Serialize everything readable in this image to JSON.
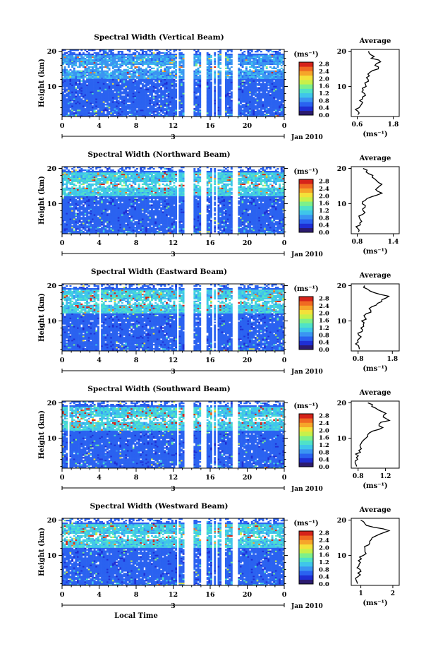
{
  "chart_data": [
    {
      "type": "heatmap",
      "title": "Spectral Width (Vertical Beam)",
      "ylabel": "Height (km)",
      "xticks": [
        "0",
        "4",
        "8",
        "12",
        "16",
        "20",
        "0"
      ],
      "yticks": [
        "10",
        "20"
      ],
      "date_tick": "3",
      "date_label": "Jan 2010",
      "ylim": [
        1.5,
        20.5
      ],
      "xlim": [
        0,
        24
      ],
      "missing_bands": [
        [
          12.4,
          12.6
        ],
        [
          13.2,
          14.2
        ],
        [
          15.1,
          15.6
        ],
        [
          16.1,
          16.4
        ],
        [
          16.7,
          16.9
        ],
        [
          17.2,
          17.5
        ],
        [
          18.4,
          19.0
        ]
      ],
      "colorbar": {
        "unit": "(ms⁻¹)",
        "ticks": [
          "2.8",
          "2.4",
          "2.0",
          "1.6",
          "1.2",
          "0.8",
          "0.4",
          "0.0"
        ]
      },
      "profile": {
        "title": "Average",
        "xlabel": "(ms⁻¹)",
        "xticks": [
          "0.6",
          "1.8"
        ],
        "xlim": [
          0.4,
          2.0
        ],
        "yticks": [
          "10",
          "20"
        ],
        "ylim": [
          1.5,
          20.5
        ],
        "height_km": [
          2,
          3,
          4,
          5,
          6,
          7,
          8,
          9,
          10,
          11,
          12,
          13,
          14,
          15,
          16,
          17,
          18,
          19,
          20
        ],
        "values": [
          0.62,
          0.6,
          0.66,
          0.75,
          0.7,
          0.78,
          0.82,
          0.8,
          0.9,
          0.84,
          0.95,
          1.0,
          1.05,
          1.3,
          1.2,
          1.35,
          1.1,
          1.05,
          1.0
        ]
      }
    },
    {
      "type": "heatmap",
      "title": "Spectral Width (Northward Beam)",
      "ylabel": "Height (km)",
      "xticks": [
        "0",
        "4",
        "8",
        "12",
        "16",
        "20",
        "0"
      ],
      "yticks": [
        "10",
        "20"
      ],
      "date_tick": "3",
      "date_label": "Jan 2010",
      "ylim": [
        1.5,
        20.5
      ],
      "xlim": [
        0,
        24
      ],
      "missing_bands": [
        [
          12.4,
          12.6
        ],
        [
          13.2,
          14.2
        ],
        [
          15.1,
          15.6
        ],
        [
          16.1,
          16.4
        ],
        [
          16.7,
          16.9
        ],
        [
          18.4,
          19.0
        ]
      ],
      "colorbar": {
        "unit": "(ms⁻¹)",
        "ticks": [
          "2.8",
          "2.4",
          "2.0",
          "1.6",
          "1.2",
          "0.8",
          "0.4",
          "0.0"
        ]
      },
      "profile": {
        "title": "Average",
        "xlabel": "(ms⁻¹)",
        "xticks": [
          "0.8",
          "1.4"
        ],
        "xlim": [
          0.7,
          1.5
        ],
        "yticks": [
          "10",
          "20"
        ],
        "ylim": [
          1.5,
          20.5
        ],
        "height_km": [
          2,
          3,
          4,
          5,
          6,
          7,
          8,
          9,
          10,
          11,
          12,
          13,
          14,
          15,
          16,
          17,
          18,
          19,
          20
        ],
        "values": [
          0.82,
          0.8,
          0.84,
          0.86,
          0.85,
          0.88,
          0.9,
          0.92,
          0.88,
          0.95,
          1.05,
          1.2,
          1.12,
          1.18,
          1.15,
          1.1,
          1.05,
          0.95,
          0.9
        ]
      }
    },
    {
      "type": "heatmap",
      "title": "Spectral Width (Eastward Beam)",
      "ylabel": "Height (km)",
      "xticks": [
        "0",
        "4",
        "8",
        "12",
        "16",
        "20",
        "0"
      ],
      "yticks": [
        "10",
        "20"
      ],
      "date_tick": "3",
      "date_label": "Jan 2010",
      "ylim": [
        1.5,
        20.5
      ],
      "xlim": [
        0,
        24
      ],
      "missing_bands": [
        [
          4.0,
          4.2
        ],
        [
          12.4,
          12.6
        ],
        [
          13.2,
          14.2
        ],
        [
          15.1,
          15.6
        ],
        [
          16.1,
          16.4
        ],
        [
          16.7,
          16.9
        ],
        [
          18.4,
          19.0
        ]
      ],
      "colorbar": {
        "unit": "(ms⁻¹)",
        "ticks": [
          "2.8",
          "2.4",
          "2.0",
          "1.6",
          "1.2",
          "0.8",
          "0.4",
          "0.0"
        ]
      },
      "profile": {
        "title": "Average",
        "xlabel": "(ms⁻¹)",
        "xticks": [
          "0.8",
          "1.8"
        ],
        "xlim": [
          0.6,
          2.0
        ],
        "yticks": [
          "10",
          "20"
        ],
        "ylim": [
          1.5,
          20.5
        ],
        "height_km": [
          2,
          3,
          4,
          5,
          6,
          7,
          8,
          9,
          10,
          11,
          12,
          13,
          14,
          15,
          16,
          17,
          18,
          19,
          20
        ],
        "values": [
          0.85,
          0.8,
          0.82,
          0.86,
          0.84,
          0.9,
          0.88,
          0.95,
          0.92,
          1.0,
          1.05,
          1.15,
          1.2,
          1.35,
          1.5,
          1.7,
          1.3,
          1.05,
          1.0
        ]
      }
    },
    {
      "type": "heatmap",
      "title": "Spectral Width (Southward Beam)",
      "ylabel": "Height (km)",
      "xticks": [
        "0",
        "4",
        "8",
        "12",
        "16",
        "20",
        "0"
      ],
      "yticks": [
        "10",
        "20"
      ],
      "date_tick": "3",
      "date_label": "Jan 2010",
      "ylim": [
        1.5,
        20.5
      ],
      "xlim": [
        0,
        24
      ],
      "missing_bands": [
        [
          0.6,
          0.8
        ],
        [
          12.4,
          12.6
        ],
        [
          13.2,
          14.2
        ],
        [
          15.1,
          15.6
        ],
        [
          16.1,
          16.4
        ],
        [
          16.7,
          16.9
        ],
        [
          18.4,
          19.0
        ]
      ],
      "colorbar": {
        "unit": "(ms⁻¹)",
        "ticks": [
          "2.8",
          "2.4",
          "2.0",
          "1.6",
          "1.2",
          "0.8",
          "0.4",
          "0.0"
        ]
      },
      "profile": {
        "title": "Average",
        "xlabel": "(ms⁻¹)",
        "xticks": [
          "0.8",
          "1.2"
        ],
        "xlim": [
          0.7,
          1.4
        ],
        "yticks": [
          "10",
          "20"
        ],
        "ylim": [
          1.5,
          20.5
        ],
        "height_km": [
          2,
          3,
          4,
          5,
          6,
          7,
          8,
          9,
          10,
          11,
          12,
          13,
          14,
          15,
          16,
          17,
          18,
          19,
          20
        ],
        "values": [
          0.78,
          0.76,
          0.8,
          0.79,
          0.82,
          0.84,
          0.83,
          0.86,
          0.9,
          0.95,
          1.0,
          1.15,
          1.1,
          1.25,
          1.18,
          1.2,
          1.1,
          1.0,
          0.95
        ]
      }
    },
    {
      "type": "heatmap",
      "title": "Spectral Width (Westward Beam)",
      "ylabel": "Height (km)",
      "xticks": [
        "0",
        "4",
        "8",
        "12",
        "16",
        "20",
        "0"
      ],
      "yticks": [
        "10",
        "20"
      ],
      "date_tick": "3",
      "date_label": "Jan 2010",
      "xlabel": "Local Time",
      "ylim": [
        1.5,
        20.5
      ],
      "xlim": [
        0,
        24
      ],
      "missing_bands": [
        [
          12.4,
          12.6
        ],
        [
          13.2,
          14.2
        ],
        [
          15.1,
          15.6
        ],
        [
          16.1,
          16.4
        ],
        [
          16.7,
          16.9
        ],
        [
          17.2,
          17.5
        ],
        [
          18.4,
          19.0
        ]
      ],
      "colorbar": {
        "unit": "(ms⁻¹)",
        "ticks": [
          "2.8",
          "2.4",
          "2.0",
          "1.6",
          "1.2",
          "0.8",
          "0.4",
          "0.0"
        ]
      },
      "profile": {
        "title": "Average",
        "xlabel": "(ms⁻¹)",
        "xticks": [
          "1",
          "2"
        ],
        "xlim": [
          0.7,
          2.2
        ],
        "yticks": [
          "10",
          "20"
        ],
        "ylim": [
          1.5,
          20.5
        ],
        "height_km": [
          2,
          3,
          4,
          5,
          6,
          7,
          8,
          9,
          10,
          11,
          12,
          13,
          14,
          15,
          16,
          17,
          18,
          19,
          20
        ],
        "values": [
          0.9,
          0.88,
          0.92,
          0.9,
          0.95,
          0.93,
          0.98,
          1.0,
          1.05,
          1.1,
          1.15,
          1.25,
          1.3,
          1.35,
          1.6,
          1.9,
          1.4,
          1.1,
          1.0
        ]
      }
    }
  ]
}
